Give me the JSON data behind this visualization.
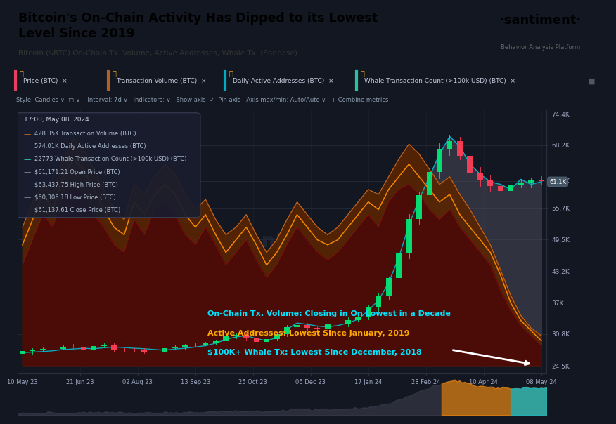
{
  "title": "Bitcoin's On-Chain Activity Has Dipped to its Lowest\nLevel Since 2019",
  "subtitle": "Bitcoin ($BTC) On-Chain Tx. Volume, Active Addresses, Whale Tx. (Sanbase)",
  "santiment_text": "·santiment·",
  "santiment_sub": "Behavior Analysis Platform",
  "bg_color": "#131722",
  "header_bg": "#ffffff",
  "chart_bg": "#131722",
  "x_labels": [
    "10 May 23",
    "21 Jun 23",
    "02 Aug 23",
    "13 Sep 23",
    "25 Oct 23",
    "06 Dec 23",
    "17 Jan 24",
    "28 Feb 24",
    "10 Apr 24",
    "08 May 24"
  ],
  "y_labels": [
    "24.5K",
    "30.8K",
    "37K",
    "43.2K",
    "49.5K",
    "55.7K",
    "61.1K",
    "68.2K",
    "74.4K"
  ],
  "y_values": [
    24500,
    30800,
    37000,
    43200,
    49500,
    55700,
    61100,
    68200,
    74400
  ],
  "annotation1": "On-Chain Tx. Volume: Closing in On Lowest in a Decade",
  "annotation2": "Active Addresses: Lowest Since January, 2019",
  "annotation3": "$100K+ Whale Tx: Lowest Since December, 2018",
  "annotation1_color": "#00e5ff",
  "annotation2_color": "#ffaa00",
  "annotation3_color": "#00e5ff",
  "candle_up_color": "#00e676",
  "candle_down_color": "#ff3d57",
  "label_text_color": "#9ea8c0",
  "grid_color": "#2a2e3d",
  "tab_bar_color": "#1a1d2e",
  "toolbar_color": "#1e2130"
}
